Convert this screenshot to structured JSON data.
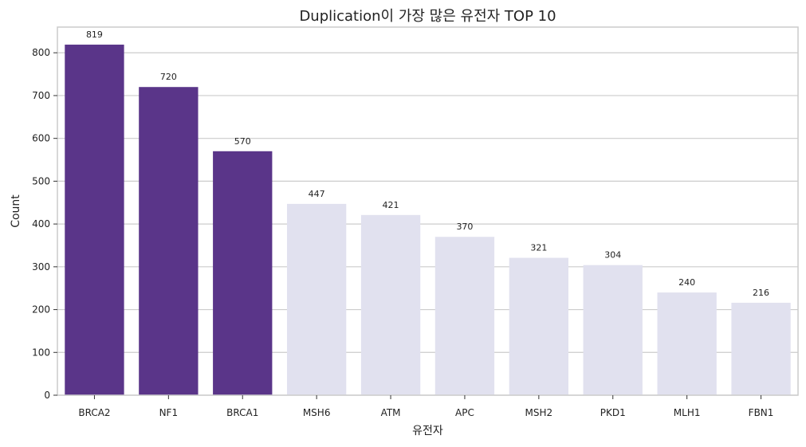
{
  "chart_data": {
    "type": "bar",
    "title": "Duplication이 가장 많은 유전자 TOP 10",
    "xlabel": "유전자",
    "ylabel": "Count",
    "categories": [
      "BRCA2",
      "NF1",
      "BRCA1",
      "MSH6",
      "ATM",
      "APC",
      "MSH2",
      "PKD1",
      "MLH1",
      "FBN1"
    ],
    "values": [
      819,
      720,
      570,
      447,
      421,
      370,
      321,
      304,
      240,
      216
    ],
    "ylim": [
      0,
      860
    ],
    "yticks": [
      0,
      100,
      200,
      300,
      400,
      500,
      600,
      700,
      800
    ],
    "grid": true,
    "legend": "none",
    "highlight_top_n": 3,
    "colors": {
      "highlight": "#5a3589",
      "default": "#e1e1ef",
      "grid": "#cccccc",
      "frame": "#cccccc"
    }
  }
}
